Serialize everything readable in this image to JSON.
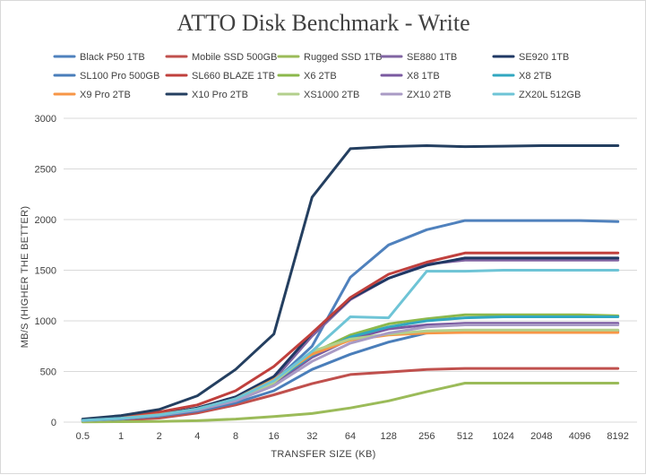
{
  "chart_data": {
    "type": "line",
    "title": "ATTO Disk Benchmark - Write",
    "xlabel": "TRANSFER SIZE (KB)",
    "ylabel": "MB/S (HIGHER THE BETTER)",
    "ylim": [
      0,
      3000
    ],
    "yticks": [
      0,
      500,
      1000,
      1500,
      2000,
      2500,
      3000
    ],
    "grid": true,
    "legend_position": "top",
    "categories": [
      "0.5",
      "1",
      "2",
      "4",
      "8",
      "16",
      "32",
      "64",
      "128",
      "256",
      "512",
      "1024",
      "2048",
      "4096",
      "8192"
    ],
    "series": [
      {
        "name": "Black P50 1TB",
        "color": "#4f81bd",
        "values": [
          20,
          40,
          75,
          130,
          240,
          400,
          750,
          1430,
          1750,
          1900,
          1990,
          1990,
          1990,
          1990,
          1980
        ]
      },
      {
        "name": "Mobile SSD 500GB",
        "color": "#c0504d",
        "values": [
          10,
          20,
          40,
          90,
          170,
          270,
          380,
          470,
          495,
          520,
          530,
          530,
          530,
          530,
          530
        ]
      },
      {
        "name": "Rugged SSD 1TB",
        "color": "#9bbb59",
        "values": [
          2,
          4,
          7,
          14,
          30,
          55,
          85,
          140,
          210,
          300,
          385,
          385,
          385,
          385,
          385
        ]
      },
      {
        "name": "SE880 1TB",
        "color": "#8064a2",
        "values": [
          20,
          40,
          75,
          130,
          230,
          420,
          850,
          1210,
          1420,
          1560,
          1600,
          1600,
          1600,
          1600,
          1600
        ]
      },
      {
        "name": "SE920 1TB",
        "color": "#1f3864",
        "values": [
          20,
          40,
          80,
          140,
          250,
          450,
          880,
          1220,
          1420,
          1550,
          1620,
          1620,
          1620,
          1620,
          1620
        ]
      },
      {
        "name": "SL100 Pro 500GB",
        "color": "#4a7eba",
        "values": [
          15,
          30,
          60,
          110,
          190,
          310,
          520,
          670,
          790,
          880,
          900,
          900,
          900,
          900,
          900
        ]
      },
      {
        "name": "SL660 BLAZE 1TB",
        "color": "#c0403d",
        "values": [
          25,
          50,
          100,
          170,
          310,
          550,
          880,
          1230,
          1460,
          1580,
          1670,
          1670,
          1670,
          1670,
          1670
        ]
      },
      {
        "name": "X6 2TB",
        "color": "#8cb84c",
        "values": [
          15,
          35,
          70,
          130,
          230,
          420,
          680,
          860,
          970,
          1020,
          1060,
          1060,
          1060,
          1060,
          1050
        ]
      },
      {
        "name": "X8 1TB",
        "color": "#7a5aa0",
        "values": [
          18,
          35,
          70,
          120,
          210,
          380,
          640,
          820,
          920,
          960,
          975,
          975,
          975,
          975,
          975
        ]
      },
      {
        "name": "X8 2TB",
        "color": "#31a7c0",
        "values": [
          18,
          36,
          72,
          125,
          220,
          400,
          660,
          840,
          940,
          1000,
          1030,
          1040,
          1040,
          1040,
          1040
        ]
      },
      {
        "name": "X9 Pro 2TB",
        "color": "#f79646",
        "values": [
          20,
          40,
          75,
          130,
          230,
          420,
          670,
          810,
          860,
          880,
          885,
          885,
          885,
          885,
          885
        ]
      },
      {
        "name": "X10 Pro 2TB",
        "color": "#243f60",
        "values": [
          30,
          65,
          125,
          260,
          520,
          870,
          2220,
          2700,
          2720,
          2730,
          2720,
          2725,
          2730,
          2730,
          2730
        ]
      },
      {
        "name": "XS1000 2TB",
        "color": "#b3cf8c",
        "values": [
          15,
          35,
          70,
          125,
          220,
          390,
          700,
          820,
          870,
          900,
          910,
          910,
          910,
          910,
          910
        ]
      },
      {
        "name": "ZX10 2TB",
        "color": "#a99bc5",
        "values": [
          16,
          35,
          68,
          120,
          210,
          360,
          600,
          780,
          880,
          940,
          960,
          960,
          960,
          960,
          960
        ]
      },
      {
        "name": "ZX20L 512GB",
        "color": "#6ec4d6",
        "values": [
          18,
          38,
          72,
          130,
          230,
          410,
          700,
          1040,
          1030,
          1490,
          1490,
          1500,
          1500,
          1500,
          1500
        ]
      }
    ]
  }
}
